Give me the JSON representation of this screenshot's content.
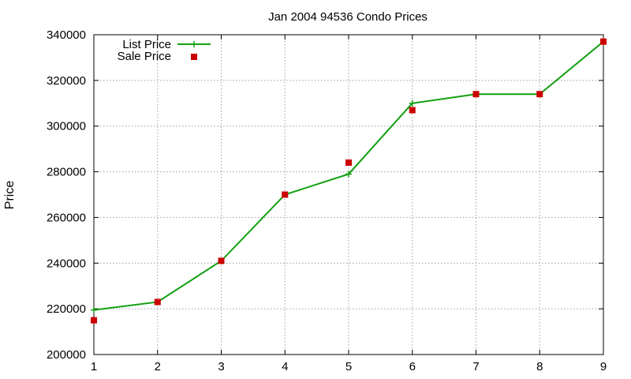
{
  "chart_data": {
    "type": "line",
    "title": "Jan 2004 94536 Condo Prices",
    "xlabel": "",
    "ylabel": "Price",
    "xlim": [
      1,
      9
    ],
    "ylim": [
      200000,
      340000
    ],
    "xticks": [
      "1",
      "2",
      "3",
      "4",
      "5",
      "6",
      "7",
      "8",
      "9"
    ],
    "yticks": [
      "200000",
      "220000",
      "240000",
      "260000",
      "280000",
      "300000",
      "320000",
      "340000"
    ],
    "grid": true,
    "legend_position": "top-left",
    "series": [
      {
        "name": "List Price",
        "style": "line-with-plus-markers",
        "color": "#11a011",
        "x": [
          1,
          2,
          3,
          4,
          5,
          6,
          7,
          8,
          9
        ],
        "y": [
          219500,
          223000,
          241000,
          270000,
          279000,
          310000,
          314000,
          314000,
          337000
        ]
      },
      {
        "name": "Sale Price",
        "style": "square-markers",
        "color": "#cc0000",
        "x": [
          1,
          2,
          3,
          4,
          5,
          6,
          7,
          8,
          9
        ],
        "y": [
          215000,
          223000,
          241000,
          270000,
          284000,
          307000,
          314000,
          314000,
          337000
        ]
      }
    ]
  }
}
